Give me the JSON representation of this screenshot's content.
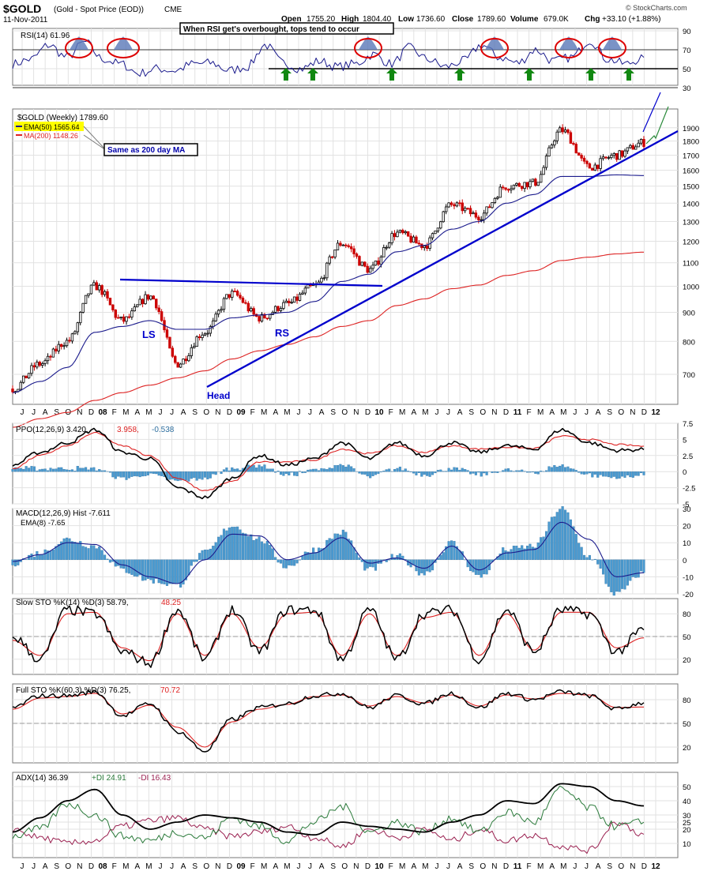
{
  "header": {
    "symbol": "$GOLD",
    "name": "(Gold - Spot Price (EOD))",
    "exchange": "CME",
    "date": "11-Nov-2011",
    "copyright": "© StockCharts.com",
    "open_label": "Open",
    "open_value": "1755.20",
    "high_label": "High",
    "high_value": "1804.40",
    "low_label": "Low",
    "low_value": "1736.60",
    "close_label": "Close",
    "close_value": "1789.60",
    "volume_label": "Volume",
    "volume_value": "679.0K",
    "chg_label": "Chg",
    "chg_value": "+33.10 (+1.88%)"
  },
  "time_axis": [
    "J",
    "J",
    "A",
    "S",
    "O",
    "N",
    "D",
    "08",
    "F",
    "M",
    "A",
    "M",
    "J",
    "J",
    "A",
    "S",
    "O",
    "N",
    "D",
    "09",
    "F",
    "M",
    "A",
    "M",
    "J",
    "J",
    "A",
    "S",
    "O",
    "N",
    "D",
    "10",
    "F",
    "M",
    "A",
    "M",
    "J",
    "J",
    "A",
    "S",
    "O",
    "N",
    "D",
    "11",
    "F",
    "M",
    "A",
    "M",
    "J",
    "J",
    "A",
    "S",
    "O",
    "N",
    "D",
    "12"
  ],
  "annotations": {
    "rsi_note": "When RSI get's overbought, tops tend to occur",
    "ema_note": "Same as 200 day MA",
    "ls": "LS",
    "head": "Head",
    "rs": "RS"
  },
  "colors": {
    "up_candle": "#000000",
    "down_candle": "#cc0000",
    "ema50": "#1a1a8c",
    "ma200": "#dd2222",
    "trendline": "#0000cc",
    "arrow": "#118811",
    "highlight_circle": "#dd0000",
    "histogram": "#4a9ad0",
    "signal": "#dd2222",
    "plus_di": "#2a7a3a",
    "minus_di": "#9a2050"
  },
  "chart_data": [
    {
      "type": "line",
      "title": "RSI(14)",
      "legend_text": "RSI(14) 61.96",
      "last_value": 61.96,
      "ylim": [
        30,
        90
      ],
      "yticks": [
        30,
        50,
        70,
        90
      ],
      "x_start": "2007-06",
      "x_end": "2011-11",
      "overbought_peaks": [
        "2007-10",
        "2008-02",
        "2009-12",
        "2010-09",
        "2011-04",
        "2011-08"
      ],
      "support_arrows": [
        "2009-04",
        "2009-06",
        "2010-01",
        "2010-05",
        "2010-10",
        "2011-05",
        "2011-09"
      ]
    },
    {
      "type": "candlestick",
      "title": "$GOLD (Weekly)",
      "legend_main": "$GOLD (Weekly) 1789.60",
      "legend_ema": "EMA(50) 1565.64",
      "legend_ma": "MA(200) 1148.26",
      "yscale": "log",
      "ylim": [
        600,
        2000
      ],
      "yticks": [
        700,
        800,
        900,
        1000,
        1100,
        1200,
        1300,
        1400,
        1500,
        1600,
        1700,
        1800,
        1900
      ],
      "series": [
        {
          "name": "$GOLD",
          "x": [
            "2007-06",
            "2007-09",
            "2007-11",
            "2008-03",
            "2008-05",
            "2008-07",
            "2008-10",
            "2008-12",
            "2009-02",
            "2009-04",
            "2009-06",
            "2009-09",
            "2009-12",
            "2010-02",
            "2010-06",
            "2010-08",
            "2010-11",
            "2011-01",
            "2011-04",
            "2011-06",
            "2011-08",
            "2011-09",
            "2011-10",
            "2011-11"
          ],
          "values": [
            660,
            730,
            800,
            1000,
            870,
            960,
            730,
            830,
            970,
            880,
            930,
            1000,
            1190,
            1070,
            1240,
            1180,
            1390,
            1330,
            1500,
            1520,
            1880,
            1620,
            1700,
            1789.6
          ]
        },
        {
          "name": "EMA(50)",
          "values": [
            650,
            680,
            720,
            830,
            850,
            870,
            840,
            840,
            880,
            890,
            900,
            940,
            1020,
            1050,
            1150,
            1180,
            1260,
            1300,
            1400,
            1450,
            1560,
            1560,
            1570,
            1565.64
          ]
        },
        {
          "name": "MA(200)",
          "values": [
            565,
            585,
            600,
            630,
            650,
            670,
            690,
            710,
            745,
            770,
            790,
            815,
            850,
            870,
            925,
            950,
            990,
            1005,
            1045,
            1065,
            1110,
            1125,
            1140,
            1148.26
          ]
        }
      ]
    },
    {
      "type": "line",
      "title": "PPO(12,26,9)",
      "legend_text": "PPO(12,26,9) 3.420,",
      "legend_signal": "3.958,",
      "legend_hist": "-0.538",
      "ylim": [
        -5,
        7.5
      ],
      "yticks": [
        -5,
        -2.5,
        0,
        2.5,
        5,
        7.5
      ],
      "series": [
        {
          "name": "PPO",
          "values": [
            1,
            3,
            4.5,
            6.5,
            3,
            2,
            -2.5,
            -4,
            -1,
            2.5,
            1,
            2,
            4.5,
            2,
            4.5,
            2.5,
            4.5,
            3,
            4,
            3.5,
            6.5,
            4.5,
            3.3,
            3.42
          ]
        },
        {
          "name": "Signal",
          "values": [
            0.5,
            2.5,
            4,
            6,
            4,
            2.5,
            -1,
            -3,
            -1.5,
            1.5,
            1.5,
            1.8,
            3.5,
            2.8,
            4,
            3,
            4,
            3.5,
            3.8,
            3.6,
            5.5,
            5,
            4.2,
            3.958
          ]
        }
      ]
    },
    {
      "type": "bar",
      "title": "MACD(12,26,9) Hist",
      "legend_text": "MACD(12,26,9) Hist -7.611",
      "legend_ema": "EMA(8) -7.65",
      "ylim": [
        -20,
        30
      ],
      "yticks": [
        -20,
        -10,
        0,
        10,
        20,
        30
      ],
      "series": [
        {
          "name": "Hist",
          "values": [
            -2,
            4,
            12,
            8,
            -6,
            -12,
            -15,
            4,
            20,
            12,
            -4,
            6,
            16,
            -6,
            2,
            -8,
            10,
            -10,
            6,
            8,
            30,
            2,
            -20,
            -7.611
          ]
        },
        {
          "name": "EMA(8)",
          "values": [
            -1,
            3,
            10,
            9,
            -3,
            -10,
            -14,
            0,
            15,
            14,
            0,
            4,
            13,
            -2,
            1,
            -5,
            8,
            -6,
            4,
            6,
            22,
            12,
            -10,
            -7.65
          ]
        }
      ]
    },
    {
      "type": "line",
      "title": "Slow STO %K(14) %D(3)",
      "legend_text": "Slow STO %K(14) %D(3) 58.79,",
      "legend_d": "48.25",
      "ylim": [
        0,
        100
      ],
      "yticks": [
        20,
        50,
        80
      ],
      "series": [
        {
          "name": "%K",
          "values": [
            50,
            20,
            85,
            80,
            30,
            15,
            85,
            20,
            85,
            30,
            85,
            85,
            20,
            85,
            20,
            80,
            85,
            20,
            85,
            30,
            85,
            80,
            30,
            58.79
          ]
        },
        {
          "name": "%D",
          "values": [
            45,
            25,
            80,
            82,
            35,
            18,
            80,
            25,
            80,
            35,
            80,
            82,
            25,
            80,
            25,
            75,
            82,
            25,
            80,
            32,
            82,
            82,
            35,
            48.25
          ]
        }
      ]
    },
    {
      "type": "line",
      "title": "Full STO %K(60,3) %D(3)",
      "legend_text": "Full STO %K(60,3) %D(3) 76.25,",
      "legend_d": "70.72",
      "ylim": [
        0,
        100
      ],
      "yticks": [
        20,
        50,
        80
      ],
      "series": [
        {
          "name": "%K",
          "values": [
            70,
            85,
            85,
            90,
            60,
            75,
            40,
            15,
            55,
            70,
            75,
            85,
            88,
            70,
            85,
            75,
            88,
            70,
            88,
            80,
            90,
            85,
            68,
            76.25
          ]
        },
        {
          "name": "%D",
          "values": [
            68,
            82,
            84,
            88,
            62,
            73,
            45,
            20,
            52,
            68,
            74,
            84,
            86,
            72,
            84,
            76,
            86,
            72,
            86,
            81,
            88,
            86,
            70,
            70.72
          ]
        }
      ]
    },
    {
      "type": "line",
      "title": "ADX(14)",
      "legend_text": "ADX(14) 36.39",
      "legend_plus": "+DI 24.91",
      "legend_minus": "-DI 16.43",
      "ylim": [
        0,
        60
      ],
      "yticks": [
        10,
        20,
        25,
        30,
        40,
        50
      ],
      "series": [
        {
          "name": "ADX",
          "values": [
            18,
            28,
            40,
            48,
            30,
            20,
            25,
            30,
            28,
            25,
            18,
            16,
            25,
            22,
            20,
            18,
            25,
            30,
            40,
            38,
            52,
            50,
            40,
            36.39
          ]
        },
        {
          "name": "+DI",
          "values": [
            15,
            20,
            38,
            30,
            15,
            12,
            18,
            14,
            28,
            22,
            12,
            25,
            36,
            18,
            25,
            18,
            28,
            18,
            32,
            25,
            48,
            35,
            22,
            24.91
          ]
        },
        {
          "name": "-DI",
          "values": [
            20,
            14,
            10,
            12,
            22,
            26,
            28,
            20,
            15,
            18,
            22,
            14,
            8,
            20,
            14,
            20,
            12,
            20,
            12,
            16,
            8,
            5,
            25,
            16.43
          ]
        }
      ]
    }
  ]
}
